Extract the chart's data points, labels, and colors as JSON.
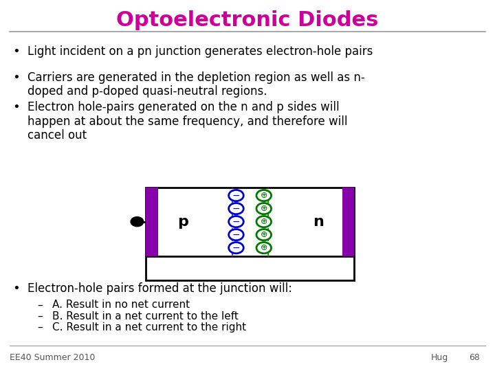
{
  "title": "Optoelectronic Diodes",
  "title_color": "#CC0099",
  "title_fontsize": 22,
  "bg_color": "#FFFFFF",
  "line_color": "#999999",
  "bullet_color": "#000000",
  "bullet_points": [
    "Light incident on a pn junction generates electron-hole pairs",
    "Carriers are generated in the depletion region as well as n-\ndoped and p-doped quasi-neutral regions.",
    "Electron hole-pairs generated on the n and p sides will\nhappen at about the same frequency, and therefore will\ncancel out"
  ],
  "bullet4": "Electron-hole pairs formed at the junction will:",
  "sub_bullets": [
    "A. Result in no net current",
    "B. Result in a net current to the left",
    "C. Result in a net current to the right"
  ],
  "footer_left": "EE40 Summer 2010",
  "footer_right": "Hug",
  "footer_page": "68",
  "purple_color": "#8800AA",
  "blue_neg_color": "#0000CC",
  "green_pos_color": "#007700",
  "dashed_blue": "#4444FF",
  "dashed_green": "#00AA00"
}
